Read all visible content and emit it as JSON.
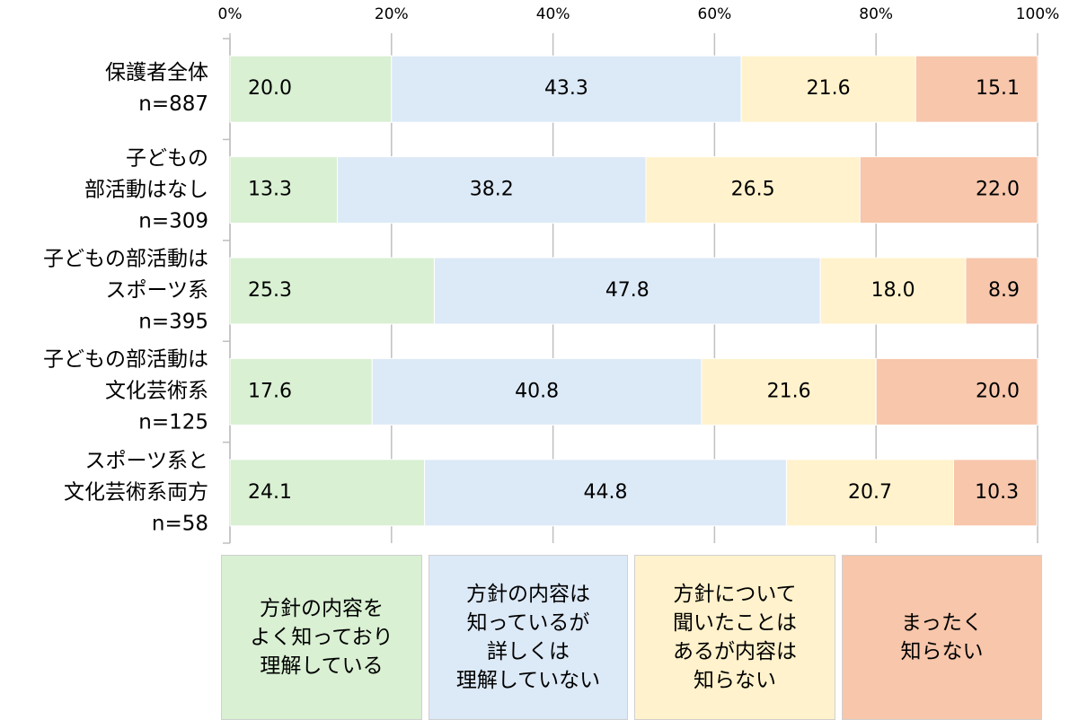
{
  "chart_data": {
    "type": "stacked-bar-horizontal",
    "categories": [
      "保護者全体\nn=887",
      "子どもの\n部活動はなし\nn=309",
      "子どもの部活動は\nスポーツ系\nn=395",
      "子どもの部活動は\n文化芸術系\nn=125",
      "スポーツ系と\n文化芸術系両方\nn=58"
    ],
    "series": [
      {
        "name": "方針の内容を\nよく知っており\n理解している",
        "color": "#d9f0d3",
        "values": [
          20.0,
          13.3,
          25.3,
          17.6,
          24.1
        ],
        "value_labels": [
          "20.0",
          "13.3",
          "25.3",
          "17.6",
          "24.1"
        ]
      },
      {
        "name": "方針の内容は\n知っているが\n詳しくは\n理解していない",
        "color": "#dce9f7",
        "values": [
          43.3,
          38.2,
          47.8,
          40.8,
          44.8
        ],
        "value_labels": [
          "43.3",
          "38.2",
          "47.8",
          "40.8",
          "44.8"
        ]
      },
      {
        "name": "方針について\n聞いたことは\nあるが内容は\n知らない",
        "color": "#fff2cc",
        "values": [
          21.6,
          26.5,
          18.0,
          21.6,
          20.7
        ],
        "value_labels": [
          "21.6",
          "26.5",
          "18.0",
          "21.6",
          "20.7"
        ]
      },
      {
        "name": "まったく\n知らない",
        "color": "#f7c6ab",
        "values": [
          15.1,
          22.0,
          8.9,
          20.0,
          10.3
        ],
        "value_labels": [
          "15.1",
          "22.0",
          "8.9",
          "20.0",
          "10.3"
        ]
      }
    ],
    "xlim": [
      0,
      100
    ],
    "xticks": [
      {
        "value": 0,
        "label": "0%"
      },
      {
        "value": 20,
        "label": "20%"
      },
      {
        "value": 40,
        "label": "40%"
      },
      {
        "value": 60,
        "label": "60%"
      },
      {
        "value": 80,
        "label": "80%"
      },
      {
        "value": 100,
        "label": "100%"
      }
    ],
    "grid": true
  }
}
